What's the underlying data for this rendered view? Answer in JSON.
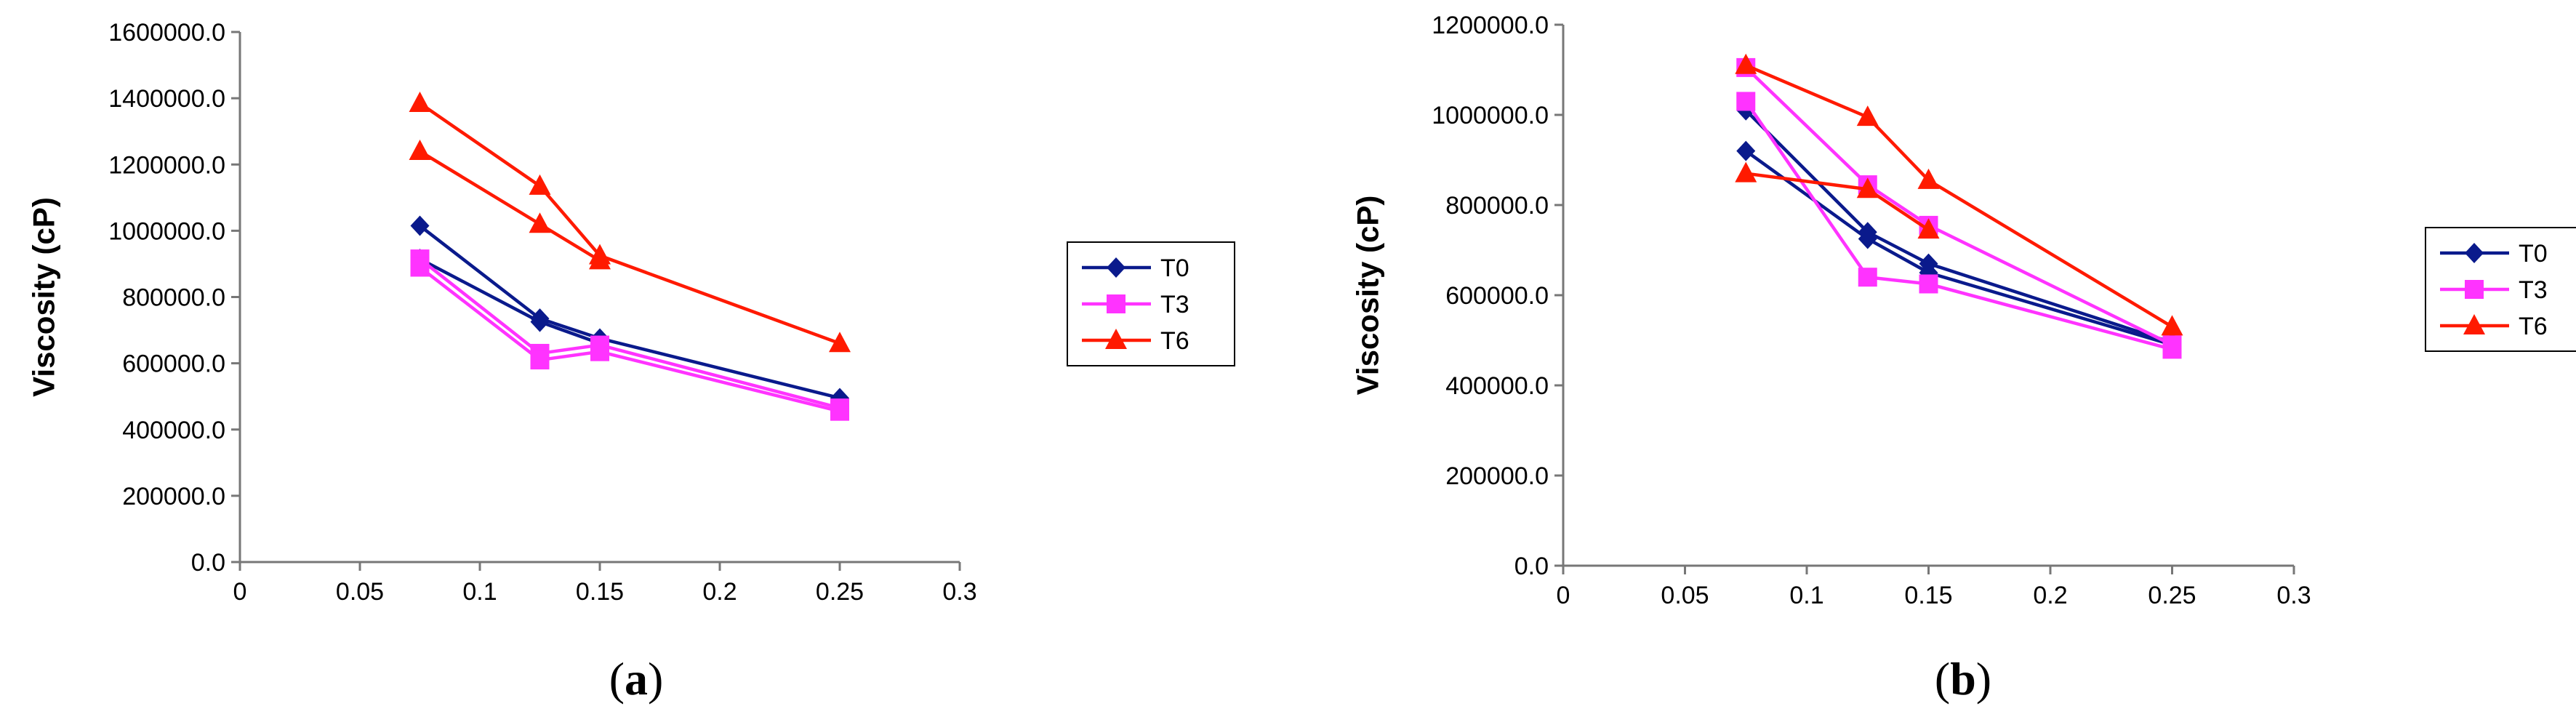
{
  "colors": {
    "T0": "#0a1a8c",
    "T3": "#ff33ff",
    "T6": "#ff1a00"
  },
  "chart_data": [
    {
      "type": "line",
      "ylabel": "Viscosity (cP)",
      "xlim": [
        0,
        0.3
      ],
      "ylim": [
        0,
        1600000
      ],
      "xticks": [
        "0",
        "0.05",
        "0.1",
        "0.15",
        "0.2",
        "0.25",
        "0.3"
      ],
      "yticks": [
        "0.0",
        "200000.0",
        "400000.0",
        "600000.0",
        "800000.0",
        "1000000.0",
        "1200000.0",
        "1400000.0",
        "1600000.0"
      ],
      "legend": [
        "T0",
        "T3",
        "T6"
      ],
      "caption_open": "(",
      "caption_letter": "a",
      "caption_close": ")",
      "series": [
        {
          "name": "T0",
          "marker": "diamond",
          "lines": [
            {
              "x": [
                0.075,
                0.125,
                0.15,
                0.25
              ],
              "y": [
                1015000,
                735000,
                675000,
                495000
              ]
            },
            {
              "x": [
                0.075,
                0.125,
                0.15
              ],
              "y": [
                915000,
                725000,
                660000
              ]
            }
          ]
        },
        {
          "name": "T3",
          "marker": "square",
          "lines": [
            {
              "x": [
                0.075,
                0.125,
                0.15,
                0.25
              ],
              "y": [
                915000,
                630000,
                655000,
                465000
              ]
            },
            {
              "x": [
                0.075,
                0.125,
                0.15,
                0.25
              ],
              "y": [
                890000,
                610000,
                635000,
                455000
              ]
            }
          ]
        },
        {
          "name": "T6",
          "marker": "triangle",
          "lines": [
            {
              "x": [
                0.075,
                0.125,
                0.15,
                0.25
              ],
              "y": [
                1385000,
                1135000,
                925000,
                660000
              ]
            },
            {
              "x": [
                0.075,
                0.125,
                0.15
              ],
              "y": [
                1240000,
                1020000,
                910000
              ]
            }
          ]
        }
      ]
    },
    {
      "type": "line",
      "ylabel": "Viscosity (cP)",
      "xlim": [
        0,
        0.3
      ],
      "ylim": [
        0,
        1200000
      ],
      "xticks": [
        "0",
        "0.05",
        "0.1",
        "0.15",
        "0.2",
        "0.25",
        "0.3"
      ],
      "yticks": [
        "0.0",
        "200000.0",
        "400000.0",
        "600000.0",
        "800000.0",
        "1000000.0",
        "1200000.0"
      ],
      "legend": [
        "T0",
        "T3",
        "T6"
      ],
      "caption_open": "(",
      "caption_letter": "b",
      "caption_close": ")",
      "series": [
        {
          "name": "T0",
          "marker": "diamond",
          "lines": [
            {
              "x": [
                0.075,
                0.125,
                0.15,
                0.25
              ],
              "y": [
                1010000,
                740000,
                670000,
                495000
              ]
            },
            {
              "x": [
                0.075,
                0.125,
                0.15,
                0.25
              ],
              "y": [
                920000,
                725000,
                650000,
                490000
              ]
            }
          ]
        },
        {
          "name": "T3",
          "marker": "square",
          "lines": [
            {
              "x": [
                0.075,
                0.125,
                0.15,
                0.25
              ],
              "y": [
                1105000,
                845000,
                755000,
                490000
              ]
            },
            {
              "x": [
                0.075,
                0.125,
                0.15,
                0.25
              ],
              "y": [
                1030000,
                640000,
                625000,
                480000
              ]
            }
          ]
        },
        {
          "name": "T6",
          "marker": "triangle",
          "lines": [
            {
              "x": [
                0.075,
                0.125,
                0.15,
                0.25
              ],
              "y": [
                1110000,
                995000,
                855000,
                530000
              ]
            },
            {
              "x": [
                0.075,
                0.125,
                0.15
              ],
              "y": [
                870000,
                835000,
                745000
              ]
            }
          ]
        }
      ]
    }
  ]
}
